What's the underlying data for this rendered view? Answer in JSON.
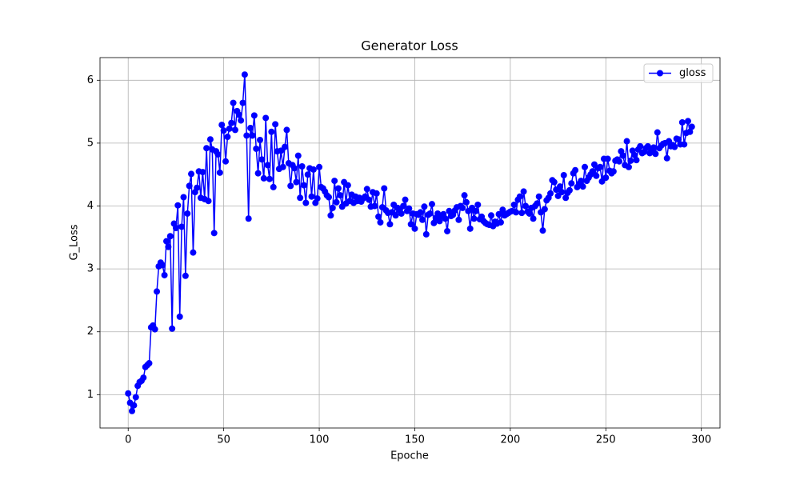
{
  "chart_data": {
    "type": "line",
    "title": "Generator Loss",
    "x_label": "Epoche",
    "y_label": "G_Loss",
    "x": [
      0,
      1,
      2,
      3,
      4,
      5,
      6,
      7,
      8,
      9,
      10,
      11,
      12,
      13,
      14,
      15,
      16,
      17,
      18,
      19,
      20,
      21,
      22,
      23,
      24,
      25,
      26,
      27,
      28,
      29,
      30,
      31,
      32,
      33,
      34,
      35,
      36,
      37,
      38,
      39,
      40,
      41,
      42,
      43,
      44,
      45,
      46,
      47,
      48,
      49,
      50,
      51,
      52,
      53,
      54,
      55,
      56,
      57,
      58,
      59,
      60,
      61,
      62,
      63,
      64,
      65,
      66,
      67,
      68,
      69,
      70,
      71,
      72,
      73,
      74,
      75,
      76,
      77,
      78,
      79,
      80,
      81,
      82,
      83,
      84,
      85,
      86,
      87,
      88,
      89,
      90,
      91,
      92,
      93,
      94,
      95,
      96,
      97,
      98,
      99,
      100,
      101,
      102,
      103,
      104,
      105,
      106,
      107,
      108,
      109,
      110,
      111,
      112,
      113,
      114,
      115,
      116,
      117,
      118,
      119,
      120,
      121,
      122,
      123,
      124,
      125,
      126,
      127,
      128,
      129,
      130,
      131,
      132,
      133,
      134,
      135,
      136,
      137,
      138,
      139,
      140,
      141,
      142,
      143,
      144,
      145,
      146,
      147,
      148,
      149,
      150,
      151,
      152,
      153,
      154,
      155,
      156,
      157,
      158,
      159,
      160,
      161,
      162,
      163,
      164,
      165,
      166,
      167,
      168,
      169,
      170,
      171,
      172,
      173,
      174,
      175,
      176,
      177,
      178,
      179,
      180,
      181,
      182,
      183,
      184,
      185,
      186,
      187,
      188,
      189,
      190,
      191,
      192,
      193,
      194,
      195,
      196,
      197,
      198,
      199,
      200,
      201,
      202,
      203,
      204,
      205,
      206,
      207,
      208,
      209,
      210,
      211,
      212,
      213,
      214,
      215,
      216,
      217,
      218,
      219,
      220,
      221,
      222,
      223,
      224,
      225,
      226,
      227,
      228,
      229,
      230,
      231,
      232,
      233,
      234,
      235,
      236,
      237,
      238,
      239,
      240,
      241,
      242,
      243,
      244,
      245,
      246,
      247,
      248,
      249,
      250,
      251,
      252,
      253,
      254,
      255,
      256,
      257,
      258,
      259,
      260,
      261,
      262,
      263,
      264,
      265,
      266,
      267,
      268,
      269,
      270,
      271,
      272,
      273,
      274,
      275,
      276,
      277,
      278,
      279,
      280,
      281,
      282,
      283,
      284,
      285,
      286,
      287,
      288,
      289,
      290,
      291,
      292,
      293,
      294,
      295
    ],
    "series": [
      {
        "name": "gloss",
        "color": "#0000ff",
        "values": [
          1.02,
          0.87,
          0.74,
          0.83,
          0.96,
          1.14,
          1.2,
          1.22,
          1.27,
          1.44,
          1.47,
          1.5,
          2.07,
          2.1,
          2.04,
          2.64,
          3.04,
          3.1,
          3.06,
          2.9,
          3.44,
          3.35,
          3.52,
          2.05,
          3.72,
          3.65,
          4.01,
          2.24,
          3.67,
          4.14,
          2.89,
          3.88,
          4.32,
          4.51,
          3.26,
          4.22,
          4.29,
          4.55,
          4.13,
          4.54,
          4.11,
          4.92,
          4.08,
          5.06,
          4.9,
          3.57,
          4.87,
          4.82,
          4.53,
          5.29,
          5.2,
          4.71,
          5.1,
          5.23,
          5.32,
          5.64,
          5.21,
          5.51,
          5.45,
          5.36,
          5.64,
          6.09,
          5.12,
          3.8,
          5.24,
          5.12,
          5.44,
          4.91,
          4.52,
          5.05,
          4.74,
          4.44,
          5.4,
          4.65,
          4.43,
          5.18,
          4.3,
          5.3,
          4.87,
          4.59,
          4.88,
          4.62,
          4.94,
          5.21,
          4.68,
          4.32,
          4.65,
          4.6,
          4.38,
          4.8,
          4.13,
          4.63,
          4.33,
          4.05,
          4.5,
          4.6,
          4.15,
          4.58,
          4.05,
          4.12,
          4.62,
          4.3,
          4.28,
          4.23,
          4.17,
          4.14,
          3.85,
          3.97,
          4.4,
          4.06,
          4.28,
          4.17,
          3.99,
          4.38,
          4.04,
          4.33,
          4.08,
          4.18,
          4.05,
          4.15,
          4.08,
          4.13,
          4.07,
          4.12,
          4.15,
          4.27,
          4.1,
          3.99,
          4.22,
          4.0,
          4.2,
          3.83,
          3.74,
          3.98,
          4.28,
          3.93,
          3.89,
          3.71,
          3.9,
          4.02,
          3.85,
          3.97,
          3.93,
          3.88,
          4.0,
          4.1,
          3.92,
          3.96,
          3.71,
          3.88,
          3.64,
          3.87,
          3.86,
          3.9,
          3.78,
          3.99,
          3.55,
          3.86,
          3.88,
          4.03,
          3.73,
          3.81,
          3.88,
          3.76,
          3.84,
          3.87,
          3.8,
          3.6,
          3.92,
          3.84,
          3.86,
          3.93,
          3.98,
          3.78,
          4.0,
          3.97,
          4.17,
          4.06,
          3.92,
          3.64,
          3.97,
          3.8,
          3.92,
          4.02,
          3.79,
          3.83,
          3.76,
          3.73,
          3.71,
          3.7,
          3.85,
          3.68,
          3.75,
          3.72,
          3.87,
          3.74,
          3.94,
          3.85,
          3.87,
          3.89,
          3.91,
          3.92,
          4.02,
          3.9,
          4.1,
          4.15,
          3.89,
          4.23,
          4.0,
          3.91,
          3.88,
          3.97,
          3.8,
          4.0,
          4.04,
          4.15,
          3.9,
          3.61,
          3.95,
          4.09,
          4.13,
          4.2,
          4.41,
          4.38,
          4.26,
          4.16,
          4.31,
          4.22,
          4.49,
          4.13,
          4.21,
          4.25,
          4.36,
          4.52,
          4.57,
          4.3,
          4.35,
          4.4,
          4.31,
          4.62,
          4.4,
          4.45,
          4.5,
          4.55,
          4.66,
          4.48,
          4.6,
          4.62,
          4.39,
          4.75,
          4.45,
          4.75,
          4.56,
          4.52,
          4.55,
          4.72,
          4.74,
          4.71,
          4.87,
          4.8,
          4.65,
          5.03,
          4.62,
          4.72,
          4.88,
          4.81,
          4.73,
          4.9,
          4.95,
          4.84,
          4.86,
          4.92,
          4.95,
          4.84,
          4.9,
          4.93,
          4.83,
          5.17,
          4.92,
          4.96,
          4.99,
          5.0,
          4.76,
          5.03,
          4.95,
          4.97,
          4.94,
          5.07,
          5.06,
          4.98,
          5.33,
          4.98,
          5.16,
          5.35,
          5.18,
          5.26
        ]
      }
    ],
    "xlim": [
      -14.75,
      309.75
    ],
    "ylim": [
      0.47,
      6.36
    ],
    "xticks": [
      0,
      50,
      100,
      150,
      200,
      250,
      300
    ],
    "yticks": [
      1,
      2,
      3,
      4,
      5,
      6
    ],
    "grid": true,
    "legend": "upper right"
  }
}
